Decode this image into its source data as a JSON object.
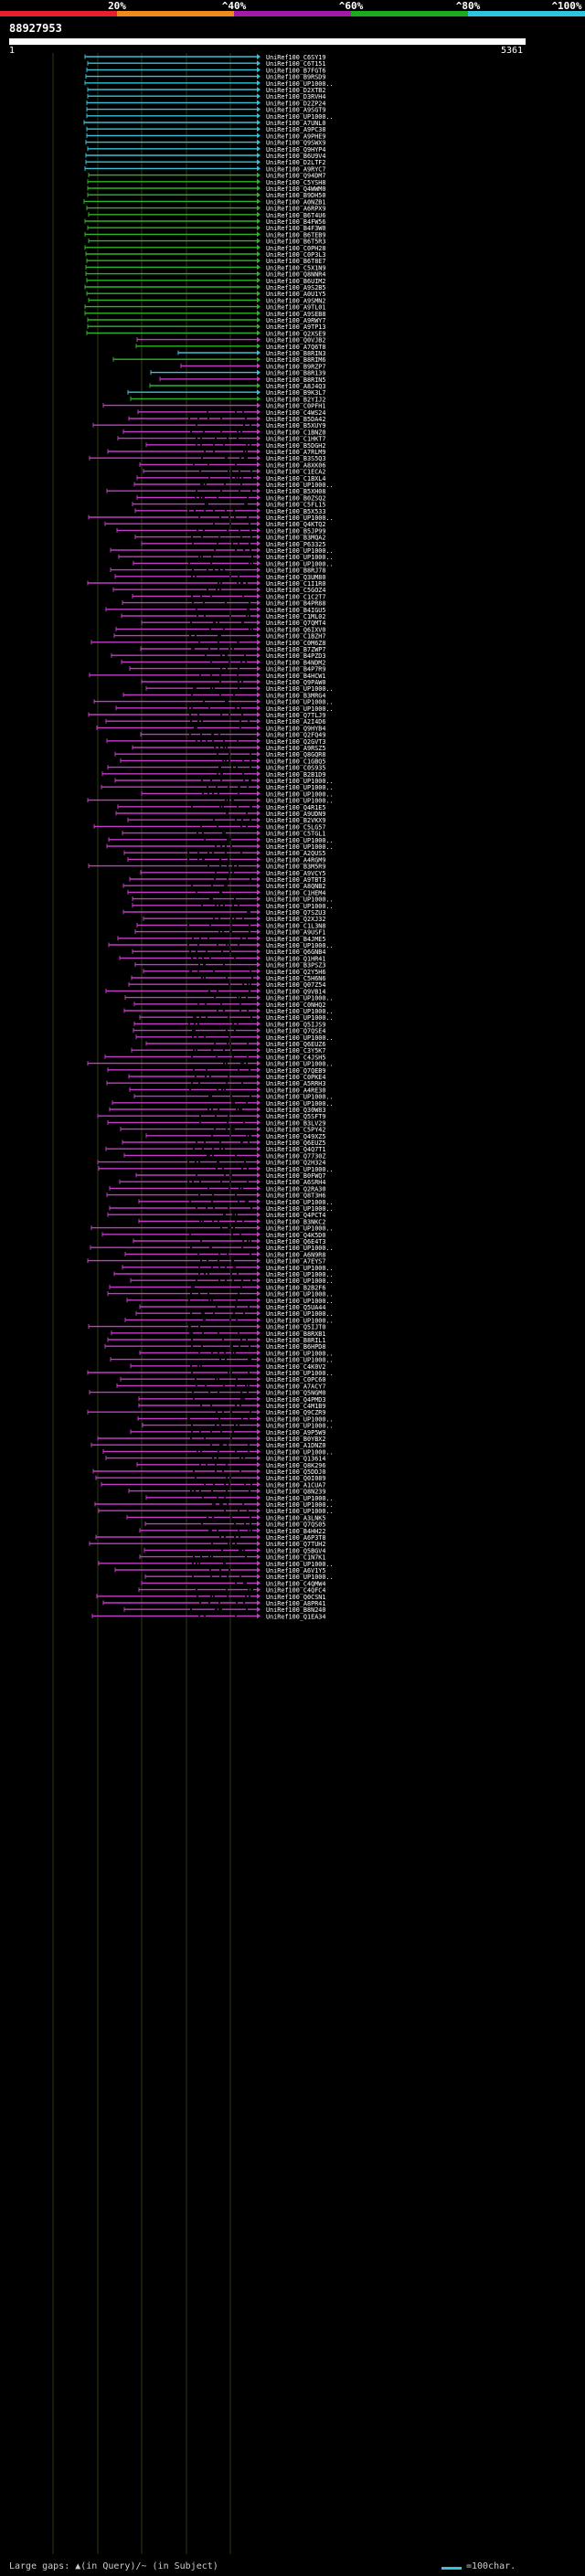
{
  "header": {
    "query_id": "88927953",
    "tick_start": "1",
    "tick_end": "5361",
    "identity_scale": [
      "20%",
      "^40%",
      "^60%",
      "^80%",
      "^100%"
    ]
  },
  "colors": {
    "background": "#000000",
    "query_bar": "#ffffff",
    "band_lt20": "#e8202c",
    "band_20_40": "#f08a1c",
    "band_40_60": "#a21aa8",
    "band_60_80": "#1cab20",
    "band_80_100": "#30c4dc",
    "hit_cyan": "#34c3d8",
    "hit_green": "#2fb526",
    "hit_magenta": "#c33bc6",
    "gap_mark": "#0a0a0a",
    "grid": "#2b3a10",
    "label": "#ffffff"
  },
  "footer": {
    "gaps_note": "Large gaps: ▲(in Query)/~ (in Subject)",
    "scale_note": "=100char."
  },
  "hits_cyan": [
    "UniRef100_C6SY19",
    "UniRef100_C6T151",
    "UniRef100_B7FGT6",
    "UniRef100_B9RSD9",
    "UniRef100_UP1000..",
    "UniRef100_D2XTB2",
    "UniRef100_D3RVH4",
    "UniRef100_D2ZP24",
    "UniRef100_A9SGT9",
    "UniRef100_UP1000..",
    "UniRef100_A7UNL0",
    "UniRef100_A9PC38",
    "UniRef100_A9PHE9",
    "UniRef100_Q9SWX9",
    "UniRef100_Q9HYP4",
    "UniRef100_B6U9V4",
    "UniRef100_D2LTF2",
    "UniRef100_A9RYC7"
  ],
  "hits_green": [
    "UniRef100_Q94DM7",
    "UniRef100_C5YSH8",
    "UniRef100_Q4WWM0",
    "UniRef100_B9DH50",
    "UniRef100_A0NZB1",
    "UniRef100_A6RPX9",
    "UniRef100_B6T4U6",
    "UniRef100_B4FW56",
    "UniRef100_B4F3W0",
    "UniRef100_B6TEB9",
    "UniRef100_B6T5R3",
    "UniRef100_C0PH28",
    "UniRef100_C0P3L3",
    "UniRef100_B6T8E7",
    "UniRef100_C5X1N9",
    "UniRef100_Q8NNR4",
    "UniRef100_B6UIM2",
    "UniRef100_A9S2B5",
    "UniRef100_A0U1Y5",
    "UniRef100_A9SMN2",
    "UniRef100_A9TL01",
    "UniRef100_A9SEB8",
    "UniRef100_A9RWY7",
    "UniRef100_A9TP13",
    "UniRef100_Q2XSE9"
  ],
  "hits_mixed": [
    "UniRef100_Q0VJB2",
    "UniRef100_A7Q6T8",
    "UniRef100_B8RIN3",
    "UniRef100_B8RIM6",
    "UniRef100_B9RZP7",
    "UniRef100_B8R139",
    "UniRef100_B8RIN5",
    "UniRef100_A8J4Q3",
    "UniRef100_B9K3L7",
    "UniRef100_B2YIJ2",
    "UniRef100_C0PFH1"
  ],
  "hits_magenta": [
    "UniRef100_C4WS24",
    "UniRef100_B5DA42",
    "UniRef100_B5XUY9",
    "UniRef100_C1BNZ0",
    "UniRef100_C1HKT7",
    "UniRef100_B5DGH2",
    "UniRef100_A7RLM9",
    "UniRef100_B3S5Q3",
    "UniRef100_A8XK06",
    "UniRef100_C1ECA2",
    "UniRef100_C1BXL4",
    "UniRef100_UP1000..",
    "UniRef100_B5XH08",
    "UniRef100_B0ZSQ2",
    "UniRef100_C5FL15",
    "UniRef100_B5X533",
    "UniRef100_UP1000..",
    "UniRef100_Q4KTQ2",
    "UniRef100_B5JP99",
    "UniRef100_B3MQA2",
    "UniRef100_P63325",
    "UniRef100_UP1000..",
    "UniRef100_UP1000..",
    "UniRef100_UP1000..",
    "UniRef100_B8RJ78",
    "UniRef100_Q3UM80",
    "UniRef100_C1I1R0",
    "UniRef100_C5GOZ4",
    "UniRef100_C1C2T7",
    "UniRef100_B4PR88",
    "UniRef100_B4IGU5",
    "UniRef100_C1ML02",
    "UniRef100_Q7QMT4",
    "UniRef100_Q6IXV0",
    "UniRef100_C1BZH7",
    "UniRef100_C0M6Z8",
    "UniRef100_B7ZWP7",
    "UniRef100_B4PZD3",
    "UniRef100_B4NDM2",
    "UniRef100_B4P7R9",
    "UniRef100_B4HCW1",
    "UniRef100_Q9PAW0",
    "UniRef100_UP1000..",
    "UniRef100_B3MRG4",
    "UniRef100_UP1000..",
    "UniRef100_UP1000..",
    "UniRef100_Q7TLJ9",
    "UniRef100_A2I4D6",
    "UniRef100_Q9HYB4",
    "UniRef100_Q2FQ49",
    "UniRef100_Q2GVT3",
    "UniRef100_A9RSZ5",
    "UniRef100_Q8GQR8",
    "UniRef100_C1GBQ5",
    "UniRef100_C0S935",
    "UniRef100_B2B1D9",
    "UniRef100_UP1000..",
    "UniRef100_UP1000..",
    "UniRef100_UP1000..",
    "UniRef100_UP1000..",
    "UniRef100_Q4R1E5",
    "UniRef100_A9UDN9",
    "UniRef100_B2VKX9",
    "UniRef100_C5LG57",
    "UniRef100_C5TGL1",
    "UniRef100_UP1000..",
    "UniRef100_UP1000..",
    "UniRef100_A2QUS5",
    "UniRef100_A4RGM9",
    "UniRef100_B3M5R9",
    "UniRef100_A9VCY5",
    "UniRef100_A9TBT3",
    "UniRef100_A8QNB2",
    "UniRef100_C1HEM4",
    "UniRef100_UP1000..",
    "UniRef100_UP1000..",
    "UniRef100_Q7SZU3",
    "UniRef100_Q2XJ32",
    "UniRef100_C1L3N8",
    "UniRef100_A9USF1",
    "UniRef100_B4JME5",
    "UniRef100_UP1000..",
    "UniRef100_Q6GNB4",
    "UniRef100_Q1HR41",
    "UniRef100_B3PSZ3",
    "UniRef100_Q2Y5H6",
    "UniRef100_C5H6N6",
    "UniRef100_Q07Z54",
    "UniRef100_Q9VB14",
    "UniRef100_UP1000..",
    "UniRef100_C0NHQ2",
    "UniRef100_UP1000..",
    "UniRef100_UP1000..",
    "UniRef100_Q5IJS9",
    "UniRef100_Q7QSE4",
    "UniRef100_UP1000..",
    "UniRef100_Q6EUZ6",
    "UniRef100_C3Y5K7",
    "UniRef100_C4JSH5",
    "UniRef100_UP1000..",
    "UniRef100_Q7QEB9",
    "UniRef100_C0PKE4",
    "UniRef100_A5RRH3",
    "UniRef100_A4RE30",
    "UniRef100_UP1000..",
    "UniRef100_UP1000..",
    "UniRef100_Q30W83",
    "UniRef100_Q5SFT9",
    "UniRef100_B3LV29",
    "UniRef100_C5PY42",
    "UniRef100_Q49XZ5",
    "UniRef100_Q6EUZ5",
    "UniRef100_Q4Q7T1",
    "UniRef100_Q7730Z",
    "UniRef100_Q2H324",
    "UniRef100_UP1000..",
    "UniRef100_B0FWQ7",
    "UniRef100_A6SRH4",
    "UniRef100_Q2RA30",
    "UniRef100_Q8T3H6",
    "UniRef100_UP1000..",
    "UniRef100_UP1000..",
    "UniRef100_Q4PCT4",
    "UniRef100_B3NKC2",
    "UniRef100_UP1000..",
    "UniRef100_Q4K5D0",
    "UniRef100_Q6E4T3",
    "UniRef100_UP1000..",
    "UniRef100_A6N9R8",
    "UniRef100_A7EYS7",
    "UniRef100_UP1000..",
    "UniRef100_UP1000..",
    "UniRef100_UP1000..",
    "UniRef100_B2B2F6",
    "UniRef100_UP1000..",
    "UniRef100_UP1000..",
    "UniRef100_Q5UA44",
    "UniRef100_UP1000..",
    "UniRef100_UP1000..",
    "UniRef100_Q5IJT0",
    "UniRef100_B8RXB1",
    "UniRef100_B8RIL1",
    "UniRef100_B6HPD8",
    "UniRef100_UP1000..",
    "UniRef100_UP1000..",
    "UniRef100_C4K0V2",
    "UniRef100_UP1000..",
    "UniRef100_C0PC60",
    "UniRef100_A7ACY7",
    "UniRef100_Q5NGM0",
    "UniRef100_Q4PMD3",
    "UniRef100_C4M1B9",
    "UniRef100_Q9CZR9",
    "UniRef100_UP1000..",
    "UniRef100_UP1000..",
    "UniRef100_A9P5W9",
    "UniRef100_B0YBX2",
    "UniRef100_A1DNZ0",
    "UniRef100_UP1000..",
    "UniRef100_Q13614",
    "UniRef100_Q8K296",
    "UniRef100_Q5DDJ0",
    "UniRef100_Q0I089",
    "UniRef100_A1CUA7",
    "UniRef100_Q8N239",
    "UniRef100_UP1000..",
    "UniRef100_UP1000..",
    "UniRef100_UP1000..",
    "UniRef100_A3LNK5",
    "UniRef100_Q7QS05",
    "UniRef100_B4HH22",
    "UniRef100_A6P3T8",
    "UniRef100_Q7TUH2",
    "UniRef100_Q5BGV4",
    "UniRef100_C1N7K1",
    "UniRef100_UP1000..",
    "UniRef100_A6V1Y5",
    "UniRef100_UP1000..",
    "UniRef100_C4QMW4",
    "UniRef100_C4QFC4",
    "UniRef100_Q0CSN1",
    "UniRef100_A8PR41",
    "UniRef100_B8N240",
    "UniRef100_Q1EA34"
  ]
}
